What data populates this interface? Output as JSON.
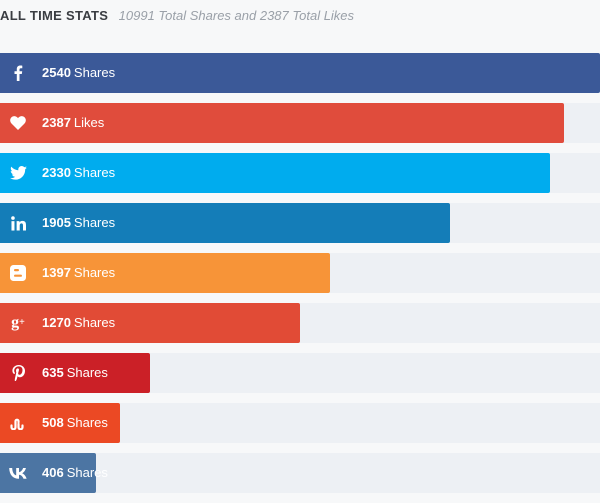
{
  "header": {
    "title": "ALL TIME STATS",
    "subtitle": "10991 Total Shares and 2387 Total Likes"
  },
  "max_value": 2540,
  "stats": [
    {
      "network": "facebook",
      "icon": "facebook-icon",
      "count": "2540",
      "unit": "Shares",
      "value": 2540,
      "color": "#3b5998"
    },
    {
      "network": "love",
      "icon": "heart-icon",
      "count": "2387",
      "unit": "Likes",
      "value": 2387,
      "color": "#e04c3c"
    },
    {
      "network": "twitter",
      "icon": "twitter-icon",
      "count": "2330",
      "unit": "Shares",
      "value": 2330,
      "color": "#00acee"
    },
    {
      "network": "linkedin",
      "icon": "linkedin-icon",
      "count": "1905",
      "unit": "Shares",
      "value": 1905,
      "color": "#147db8"
    },
    {
      "network": "blogger",
      "icon": "blogger-icon",
      "count": "1397",
      "unit": "Shares",
      "value": 1397,
      "color": "#f79438"
    },
    {
      "network": "google-plus",
      "icon": "google-plus-icon",
      "count": "1270",
      "unit": "Shares",
      "value": 1270,
      "color": "#e14b36"
    },
    {
      "network": "pinterest",
      "icon": "pinterest-icon",
      "count": "635",
      "unit": "Shares",
      "value": 635,
      "color": "#cb2027"
    },
    {
      "network": "stumbleupon",
      "icon": "stumbleupon-icon",
      "count": "508",
      "unit": "Shares",
      "value": 508,
      "color": "#eb4924"
    },
    {
      "network": "vk",
      "icon": "vk-icon",
      "count": "406",
      "unit": "Shares",
      "value": 406,
      "color": "#4c75a3"
    }
  ]
}
